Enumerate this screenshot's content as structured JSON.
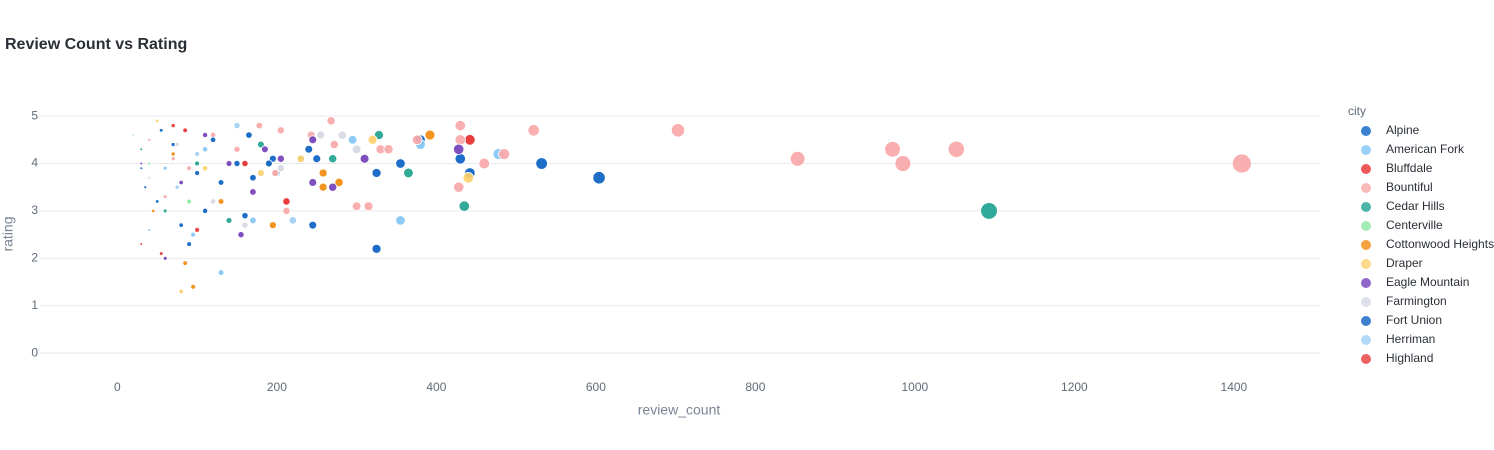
{
  "chart_data": {
    "type": "scatter",
    "title": "Review Count vs Rating",
    "x_label": "review_count",
    "y_label": "rating",
    "legend_title": "city",
    "xlim": [
      -97,
      1508
    ],
    "ylim": [
      -0.46,
      5.55
    ],
    "xticks": [
      0,
      200,
      400,
      600,
      800,
      1000,
      1200,
      1400
    ],
    "yticks": [
      0,
      1,
      2,
      3,
      4,
      5
    ],
    "grid": true,
    "legend": "right",
    "series": [
      {
        "name": "Alpine",
        "color": "#0b62c4",
        "x": [
          604,
          532,
          442,
          430,
          380,
          355,
          325,
          325,
          245,
          250,
          195,
          165,
          160,
          130,
          110,
          90,
          70,
          50,
          30
        ],
        "values": [
          3.7,
          4.0,
          3.8,
          4.1,
          4.5,
          4.0,
          3.8,
          2.2,
          2.7,
          4.1,
          4.1,
          4.6,
          2.9,
          3.6,
          3.0,
          2.3,
          4.4,
          3.2,
          3.9
        ]
      },
      {
        "name": "American Fork",
        "color": "#83c5f5",
        "x": [
          478,
          355,
          380,
          295,
          230,
          200,
          170,
          130,
          110,
          95,
          60,
          20
        ],
        "values": [
          4.2,
          2.8,
          4.4,
          4.5,
          4.1,
          3.8,
          2.8,
          1.7,
          4.3,
          2.5,
          3.9,
          4.6
        ]
      },
      {
        "name": "Bluffdale",
        "color": "#e82e2e",
        "x": [
          442,
          212,
          160,
          85,
          55
        ],
        "values": [
          4.5,
          3.2,
          4.0,
          4.7,
          2.1
        ]
      },
      {
        "name": "Bountiful",
        "color": "#f9a8a8",
        "x": [
          1410,
          1052,
          985,
          972,
          853,
          703,
          522,
          485,
          430,
          430,
          460,
          428,
          376,
          330,
          340,
          315,
          300,
          268,
          272,
          243,
          212,
          205,
          178,
          198,
          150,
          120,
          90,
          70,
          60,
          40
        ],
        "values": [
          4.0,
          4.3,
          4.0,
          4.3,
          4.1,
          4.7,
          4.7,
          4.2,
          4.8,
          4.5,
          4.0,
          3.5,
          4.5,
          4.3,
          4.3,
          3.1,
          3.1,
          4.9,
          4.4,
          4.6,
          3.0,
          4.7,
          4.8,
          3.8,
          4.3,
          4.6,
          3.9,
          4.1,
          3.3,
          4.5
        ]
      },
      {
        "name": "Cedar Hills",
        "color": "#1fa391",
        "x": [
          1093,
          435,
          365,
          328,
          270,
          180,
          140,
          100,
          60,
          30
        ],
        "values": [
          3.0,
          3.1,
          3.8,
          4.6,
          4.1,
          4.4,
          2.8,
          4.0,
          3.0,
          4.3
        ]
      },
      {
        "name": "Centerville",
        "color": "#8ee6a5",
        "x": [
          90,
          40
        ],
        "values": [
          3.2,
          4.0
        ]
      },
      {
        "name": "Cottonwood Heights",
        "color": "#f28a0d",
        "x": [
          392,
          258,
          278,
          258,
          195,
          130,
          95,
          85,
          70,
          45
        ],
        "values": [
          4.6,
          3.5,
          3.6,
          3.8,
          2.7,
          3.2,
          1.4,
          1.9,
          4.2,
          3.0
        ]
      },
      {
        "name": "Draper",
        "color": "#fcd06b",
        "x": [
          440,
          320,
          230,
          180,
          110,
          80,
          50
        ],
        "values": [
          3.7,
          4.5,
          4.1,
          3.8,
          3.9,
          1.3,
          4.9
        ]
      },
      {
        "name": "Eagle Mountain",
        "color": "#7440bb",
        "x": [
          428,
          310,
          270,
          245,
          245,
          205,
          185,
          170,
          155,
          140,
          110,
          80,
          60,
          30
        ],
        "values": [
          4.3,
          4.1,
          3.5,
          4.5,
          3.6,
          4.1,
          4.3,
          3.4,
          2.5,
          4.0,
          4.6,
          3.6,
          2.0,
          4.0
        ]
      },
      {
        "name": "Farmington",
        "color": "#d6d9e3",
        "x": [
          282,
          255,
          300,
          205,
          160,
          120,
          75,
          40
        ],
        "values": [
          4.6,
          4.6,
          4.3,
          3.9,
          2.7,
          3.2,
          4.4,
          3.7
        ]
      },
      {
        "name": "Fort Union",
        "color": "#0a5fc0",
        "x": [
          240,
          190,
          170,
          150,
          120,
          100,
          80,
          55,
          35
        ],
        "values": [
          4.3,
          4.0,
          3.7,
          4.0,
          4.5,
          3.8,
          2.7,
          4.7,
          3.5
        ]
      },
      {
        "name": "Herriman",
        "color": "#9fd0f4",
        "x": [
          220,
          150,
          100,
          75,
          40
        ],
        "values": [
          2.8,
          4.8,
          4.2,
          3.5,
          2.6
        ]
      },
      {
        "name": "Highland",
        "color": "#e83a3a",
        "x": [
          100,
          70,
          30
        ],
        "values": [
          2.6,
          4.8,
          2.3
        ]
      }
    ]
  }
}
